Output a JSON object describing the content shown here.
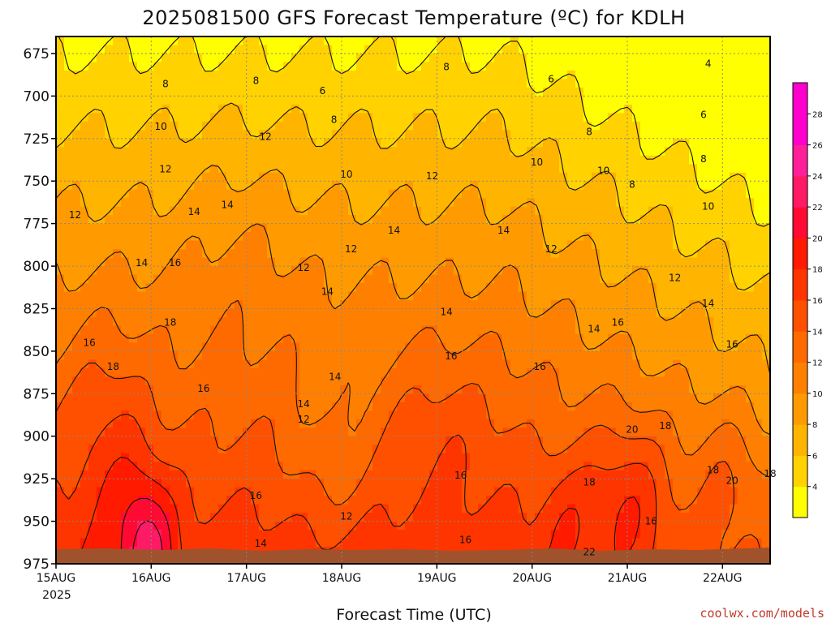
{
  "chart_data": {
    "type": "heatmap",
    "title": "2025081500 GFS Forecast Temperature (ºC) for KDLH",
    "xlabel": "Forecast Time (UTC)",
    "ylabel": "",
    "x_ticks": [
      "15AUG",
      "16AUG",
      "17AUG",
      "18AUG",
      "19AUG",
      "20AUG",
      "21AUG",
      "22AUG"
    ],
    "x_year_label": "2025",
    "xlim_days": [
      0,
      7.5
    ],
    "y_ticks": [
      "675",
      "700",
      "725",
      "750",
      "775",
      "800",
      "825",
      "850",
      "875",
      "900",
      "925",
      "950",
      "975"
    ],
    "ylim_hpa": [
      975,
      665
    ],
    "colorbar_ticks": [
      "4",
      "6",
      "8",
      "10",
      "12",
      "14",
      "16",
      "18",
      "20",
      "22",
      "24",
      "26",
      "28"
    ],
    "colorbar_range": [
      2,
      30
    ],
    "colorbar_colors": [
      "#ffff00",
      "#ffd200",
      "#ffb400",
      "#ff9b00",
      "#ff8000",
      "#ff6a00",
      "#ff5000",
      "#ff3500",
      "#ff1a00",
      "#ff0a33",
      "#ff1a66",
      "#ff1f99",
      "#ff00cc",
      "#ff00cc"
    ],
    "grid": true,
    "contour_labels": [
      {
        "d": 1.15,
        "p": 693,
        "v": "8"
      },
      {
        "d": 2.1,
        "p": 691,
        "v": "8"
      },
      {
        "d": 2.8,
        "p": 697,
        "v": "6"
      },
      {
        "d": 4.1,
        "p": 683,
        "v": "8"
      },
      {
        "d": 5.2,
        "p": 690,
        "v": "6"
      },
      {
        "d": 6.85,
        "p": 681,
        "v": "4"
      },
      {
        "d": 1.1,
        "p": 718,
        "v": "10"
      },
      {
        "d": 2.92,
        "p": 714,
        "v": "8"
      },
      {
        "d": 2.2,
        "p": 724,
        "v": "12"
      },
      {
        "d": 5.6,
        "p": 721,
        "v": "8"
      },
      {
        "d": 6.8,
        "p": 711,
        "v": "6"
      },
      {
        "d": 5.05,
        "p": 739,
        "v": "10"
      },
      {
        "d": 6.8,
        "p": 737,
        "v": "8"
      },
      {
        "d": 1.15,
        "p": 743,
        "v": "12"
      },
      {
        "d": 3.05,
        "p": 746,
        "v": "10"
      },
      {
        "d": 3.95,
        "p": 747,
        "v": "12"
      },
      {
        "d": 5.75,
        "p": 744,
        "v": "10"
      },
      {
        "d": 6.05,
        "p": 752,
        "v": "8"
      },
      {
        "d": 0.2,
        "p": 770,
        "v": "12"
      },
      {
        "d": 1.45,
        "p": 768,
        "v": "14"
      },
      {
        "d": 1.8,
        "p": 764,
        "v": "14"
      },
      {
        "d": 6.85,
        "p": 765,
        "v": "10"
      },
      {
        "d": 3.55,
        "p": 779,
        "v": "14"
      },
      {
        "d": 4.7,
        "p": 779,
        "v": "14"
      },
      {
        "d": 3.1,
        "p": 790,
        "v": "12"
      },
      {
        "d": 5.2,
        "p": 790,
        "v": "12"
      },
      {
        "d": 0.9,
        "p": 798,
        "v": "14"
      },
      {
        "d": 1.25,
        "p": 798,
        "v": "16"
      },
      {
        "d": 2.6,
        "p": 801,
        "v": "12"
      },
      {
        "d": 6.5,
        "p": 807,
        "v": "12"
      },
      {
        "d": 2.85,
        "p": 815,
        "v": "14"
      },
      {
        "d": 4.1,
        "p": 827,
        "v": "14"
      },
      {
        "d": 6.85,
        "p": 822,
        "v": "14"
      },
      {
        "d": 1.2,
        "p": 833,
        "v": "18"
      },
      {
        "d": 5.65,
        "p": 837,
        "v": "14"
      },
      {
        "d": 5.9,
        "p": 833,
        "v": "16"
      },
      {
        "d": 0.35,
        "p": 845,
        "v": "16"
      },
      {
        "d": 4.15,
        "p": 853,
        "v": "16"
      },
      {
        "d": 7.1,
        "p": 846,
        "v": "16"
      },
      {
        "d": 0.6,
        "p": 859,
        "v": "18"
      },
      {
        "d": 5.08,
        "p": 859,
        "v": "16"
      },
      {
        "d": 2.93,
        "p": 865,
        "v": "14"
      },
      {
        "d": 1.55,
        "p": 872,
        "v": "16"
      },
      {
        "d": 2.6,
        "p": 881,
        "v": "14"
      },
      {
        "d": 2.6,
        "p": 890,
        "v": "12"
      },
      {
        "d": 6.05,
        "p": 896,
        "v": "20"
      },
      {
        "d": 6.4,
        "p": 894,
        "v": "18"
      },
      {
        "d": 6.9,
        "p": 920,
        "v": "18"
      },
      {
        "d": 7.5,
        "p": 922,
        "v": "18"
      },
      {
        "d": 7.1,
        "p": 926,
        "v": "20"
      },
      {
        "d": 4.25,
        "p": 923,
        "v": "16"
      },
      {
        "d": 5.6,
        "p": 927,
        "v": "18"
      },
      {
        "d": 2.1,
        "p": 935,
        "v": "16"
      },
      {
        "d": 3.05,
        "p": 947,
        "v": "12"
      },
      {
        "d": 6.25,
        "p": 950,
        "v": "16"
      },
      {
        "d": 4.3,
        "p": 961,
        "v": "16"
      },
      {
        "d": 2.15,
        "p": 963,
        "v": "14"
      },
      {
        "d": 5.6,
        "p": 968,
        "v": "22"
      }
    ]
  },
  "credit": "coolwx.com/models"
}
